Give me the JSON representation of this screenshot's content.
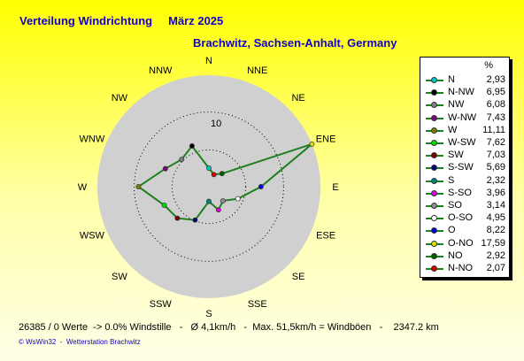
{
  "title": "Verteilung Windrichtung",
  "date": "März 2025",
  "location": "Brachwitz, Sachsen-Anhalt, Germany",
  "footer": "26385 / 0 Werte  -> 0.0% Windstille   -   Ø 4,1km/h   -  Max. 51,5km/h = Windböen   -    2347.2 km",
  "copyright": "© WsWin32  -  Wetterstation Brachwitz",
  "colors": {
    "title": "#1400c8",
    "disk": "#d0d0d0",
    "rings": "#000000",
    "line": "#208020"
  },
  "chart_data": {
    "type": "radar",
    "title": "Verteilung Windrichtung",
    "unit": "%",
    "ring_label": "10",
    "rmax": 17.59,
    "compass_labels": [
      "N",
      "NNE",
      "NE",
      "ENE",
      "E",
      "ESE",
      "SE",
      "SSE",
      "S",
      "SSW",
      "SW",
      "WSW",
      "W",
      "WNW",
      "NW",
      "NNW"
    ],
    "legend_header": "%",
    "series": [
      {
        "name": "N",
        "value": 2.93,
        "color": "#00c8c8"
      },
      {
        "name": "N-NW",
        "value": 6.95,
        "color": "#000000"
      },
      {
        "name": "NW",
        "value": 6.08,
        "color": "#808080"
      },
      {
        "name": "W-NW",
        "value": 7.43,
        "color": "#800080"
      },
      {
        "name": "W",
        "value": 11.11,
        "color": "#808000"
      },
      {
        "name": "W-SW",
        "value": 7.62,
        "color": "#00e000"
      },
      {
        "name": "SW",
        "value": 7.03,
        "color": "#800000"
      },
      {
        "name": "S-SW",
        "value": 5.69,
        "color": "#000080"
      },
      {
        "name": "S",
        "value": 2.32,
        "color": "#008080"
      },
      {
        "name": "S-SO",
        "value": 3.96,
        "color": "#e000e0"
      },
      {
        "name": "SO",
        "value": 3.14,
        "color": "#909090"
      },
      {
        "name": "O-SO",
        "value": 4.95,
        "color": "#ffffff"
      },
      {
        "name": "O",
        "value": 8.22,
        "color": "#0000e0"
      },
      {
        "name": "O-NO",
        "value": 17.59,
        "color": "#e0e000"
      },
      {
        "name": "NO",
        "value": 2.92,
        "color": "#006000"
      },
      {
        "name": "N-NO",
        "value": 2.07,
        "color": "#e00000"
      }
    ]
  }
}
